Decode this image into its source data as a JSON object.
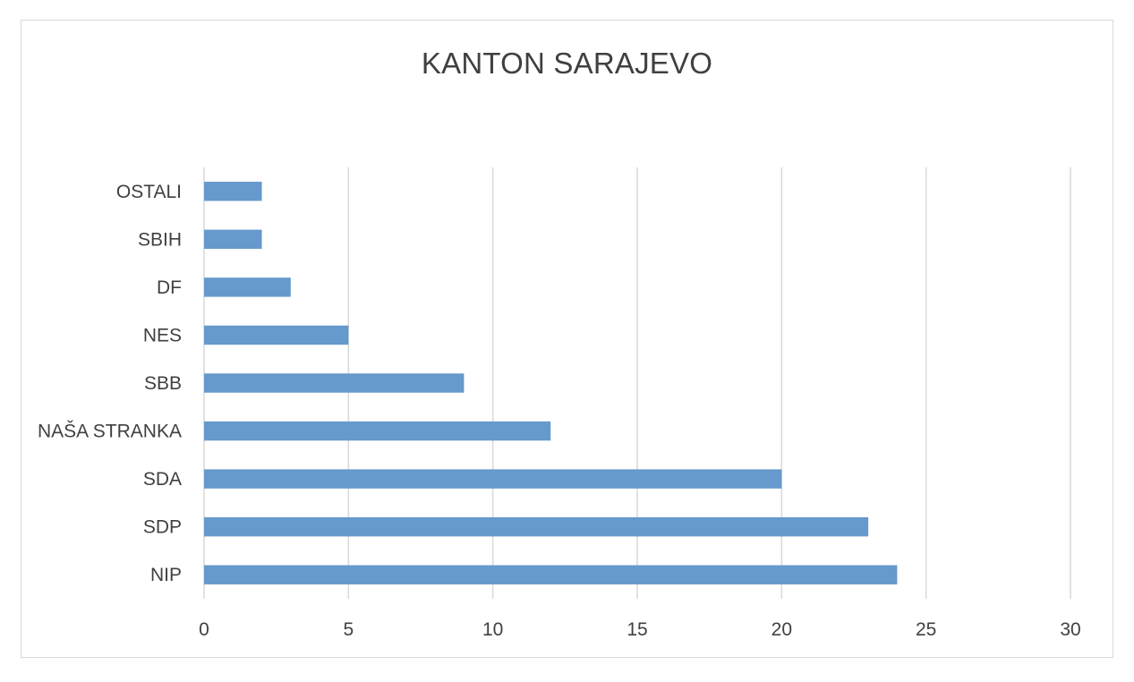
{
  "chart_data": {
    "type": "bar",
    "orientation": "horizontal",
    "title": "KANTON SARAJEVO",
    "categories": [
      "NIP",
      "SDP",
      "SDA",
      "NAŠA STRANKA",
      "SBB",
      "NES",
      "DF",
      "SBIH",
      "OSTALI"
    ],
    "values": [
      24,
      23,
      20,
      12,
      9,
      5,
      3,
      2,
      2
    ],
    "xlim": [
      0,
      30
    ],
    "xticks": [
      0,
      5,
      10,
      15,
      20,
      25,
      30
    ],
    "xlabel": "",
    "ylabel": "",
    "grid": "vertical",
    "legend": "none",
    "bar_color": "#6699cc",
    "grid_color": "#d9d9d9"
  }
}
